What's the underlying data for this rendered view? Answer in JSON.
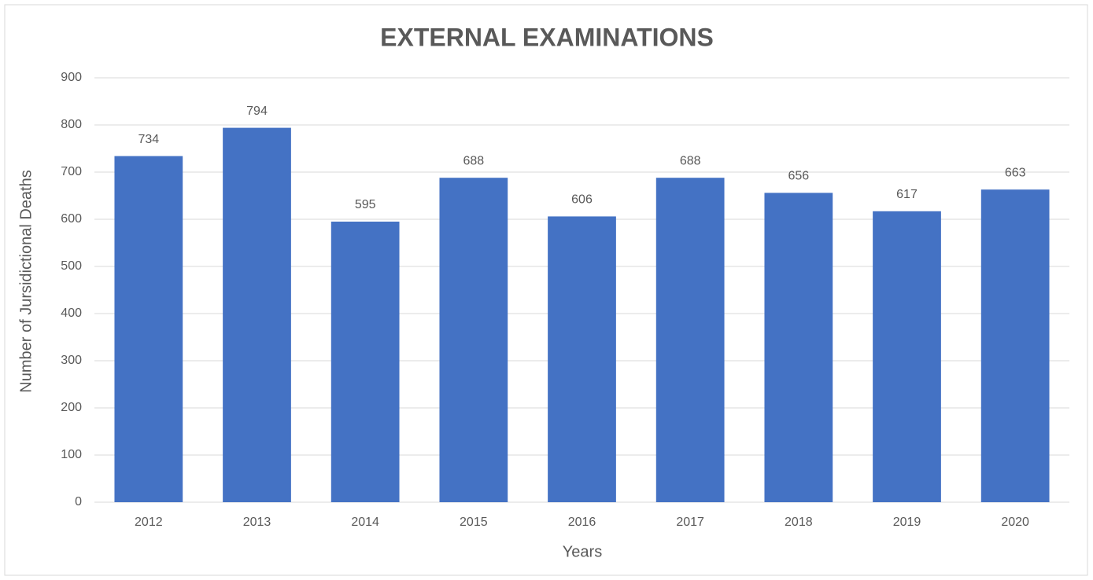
{
  "chart_data": {
    "type": "bar",
    "title": "EXTERNAL EXAMINATIONS",
    "x_label": "Years",
    "y_label": "Number of Jursidictional Deaths",
    "categories": [
      "2012",
      "2013",
      "2014",
      "2015",
      "2016",
      "2017",
      "2018",
      "2019",
      "2020"
    ],
    "values": [
      734,
      794,
      595,
      688,
      606,
      688,
      656,
      617,
      663
    ],
    "color": "#4472c4",
    "ylim": [
      0,
      900
    ],
    "yticks": [
      0,
      100,
      200,
      300,
      400,
      500,
      600,
      700,
      800,
      900
    ],
    "grid": true
  }
}
